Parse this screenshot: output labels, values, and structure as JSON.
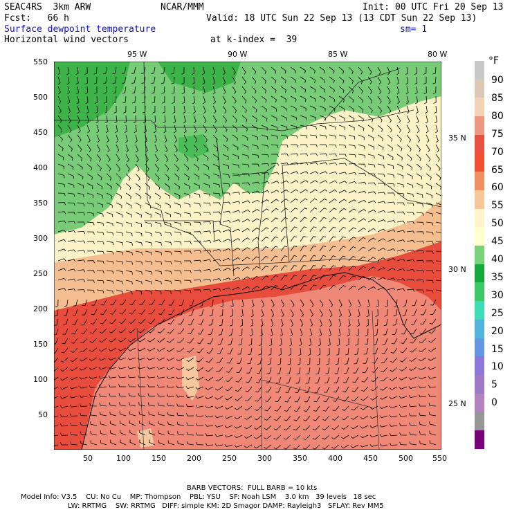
{
  "header": {
    "model": "SEAC4RS  3km ARW",
    "org": "NCAR/MMM",
    "init": "Init: 00 UTC Fri 20 Sep 13",
    "fcst": "Fcst:   66 h",
    "valid": "Valid: 18 UTC Sun 22 Sep 13 (13 CDT Sun 22 Sep 13)",
    "field": "Surface dewpoint temperature",
    "smooth": "sm= 1",
    "vectors": "Horizontal wind vectors",
    "kindex": "at k-index =  39"
  },
  "axes": {
    "lon_labels": [
      "95 W",
      "90 W",
      "85 W",
      "80 W"
    ],
    "lat_labels": [
      "35 N",
      "30 N",
      "25 N"
    ],
    "y_ticks": [
      "550",
      "500",
      "450",
      "400",
      "350",
      "300",
      "250",
      "200",
      "150",
      "100",
      "50"
    ],
    "x_ticks": [
      "50",
      "100",
      "150",
      "200",
      "250",
      "300",
      "350",
      "400",
      "450",
      "500",
      "550"
    ]
  },
  "colorbar": {
    "unit": "°F",
    "labels": [
      "90",
      "85",
      "80",
      "75",
      "70",
      "65",
      "60",
      "55",
      "50",
      "45",
      "40",
      "35",
      "30",
      "25",
      "20",
      "15",
      "10",
      "5",
      "0"
    ],
    "colors": [
      "#c8c8c8",
      "#dcc8b4",
      "#f5d2b4",
      "#f09680",
      "#e85040",
      "#f05030",
      "#f09060",
      "#f5c896",
      "#fff5c8",
      "#ffffd0",
      "#78d278",
      "#14aa3c",
      "#3cc864",
      "#3cdcb4",
      "#50b4dc",
      "#6496e6",
      "#8c78dc",
      "#a078c8",
      "#b482be",
      "#969696",
      "#780078"
    ]
  },
  "footer": {
    "barb": "BARB VECTORS:  FULL BARB = 10 kts",
    "line1": "Model Info: V3.5    CU: No Cu    MP: Thompson    PBL: YSU    SF: Noah LSM    3.0 km   39 levels   18 sec",
    "line2": "LW: RRTMG    SW: RRTMG   DIFF: simple KM: 2D Smagor DAMP: Rayleigh3   SFLAY: Rev MM5"
  }
}
